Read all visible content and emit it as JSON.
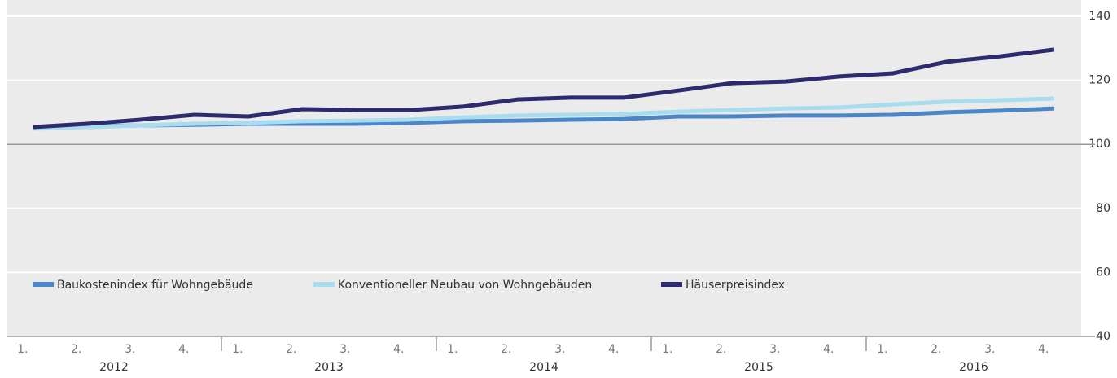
{
  "chart_data": {
    "type": "line",
    "categories": [
      "1.",
      "2.",
      "3.",
      "4.",
      "1.",
      "2.",
      "3.",
      "4.",
      "1.",
      "2.",
      "3.",
      "4.",
      "1.",
      "2.",
      "3.",
      "4.",
      "1.",
      "2.",
      "3.",
      "4."
    ],
    "years": [
      "2012",
      "2013",
      "2014",
      "2015",
      "2016"
    ],
    "series": [
      {
        "name": "Baukostenindex für Wohngebäude",
        "color": "#4a86c8",
        "values": [
          105.1,
          105.6,
          105.9,
          106.1,
          106.4,
          106.4,
          106.4,
          106.7,
          107.2,
          107.4,
          107.7,
          107.9,
          108.7,
          108.7,
          109,
          109,
          109.2,
          110,
          110.5,
          111.2
        ]
      },
      {
        "name": "Konventioneller Neubau von Wohngebäuden",
        "color": "#a8dcef",
        "values": [
          104.9,
          105.4,
          105.9,
          106.4,
          106.7,
          107.2,
          107.4,
          107.7,
          108.4,
          109,
          109.2,
          109.5,
          110.2,
          110.7,
          111.2,
          111.5,
          112.5,
          113.3,
          113.8,
          114.3
        ]
      },
      {
        "name": "Häuserpreisindex",
        "color": "#2e2a6e",
        "values": [
          105.4,
          106.4,
          107.7,
          109.2,
          108.7,
          111,
          110.7,
          110.7,
          111.8,
          114,
          114.6,
          114.6,
          116.8,
          119.1,
          119.6,
          121.2,
          122.2,
          125.8,
          127.5,
          129.6
        ]
      }
    ],
    "ylim": [
      40,
      140
    ],
    "yticks": [
      40,
      60,
      80,
      100,
      120,
      140
    ],
    "grid": true
  }
}
